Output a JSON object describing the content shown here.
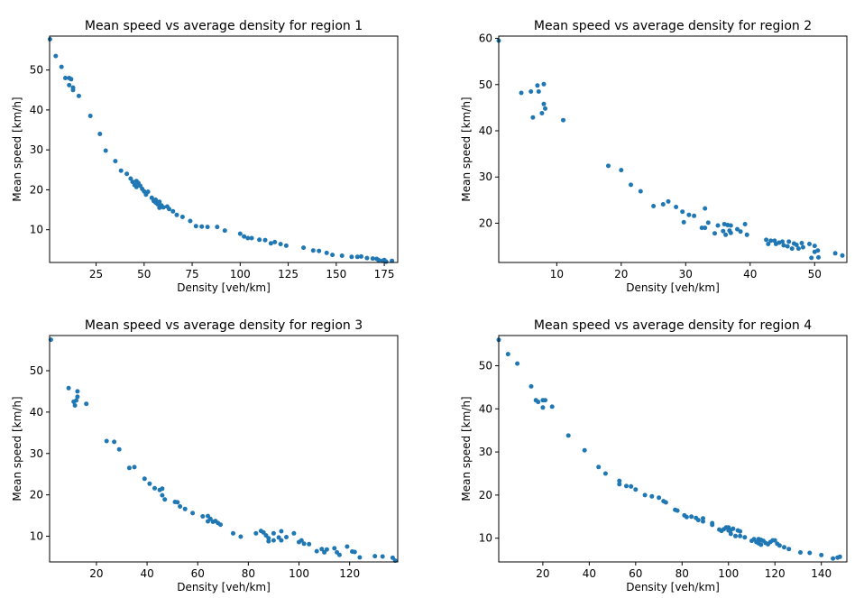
{
  "figure": {
    "point_color": "#1f77b4"
  },
  "chart_data": [
    {
      "type": "scatter",
      "title": "Mean speed vs average density for region 1",
      "xlabel": "Density [veh/km]",
      "ylabel": "Mean speed [km/h]",
      "xlim": [
        0.8,
        182
      ],
      "ylim": [
        1.8,
        58.5
      ],
      "xticks": [
        25,
        50,
        75,
        100,
        125,
        150,
        175
      ],
      "yticks": [
        10,
        20,
        30,
        40,
        50
      ],
      "grid": false,
      "points": [
        [
          1,
          57.7
        ],
        [
          4,
          53.5
        ],
        [
          7,
          50.8
        ],
        [
          9,
          48
        ],
        [
          11,
          48
        ],
        [
          11,
          46.2
        ],
        [
          12,
          47.7
        ],
        [
          13,
          45.6
        ],
        [
          13,
          45
        ],
        [
          16,
          43.5
        ],
        [
          22,
          38.5
        ],
        [
          27,
          34
        ],
        [
          30,
          29.8
        ],
        [
          35,
          27.2
        ],
        [
          38,
          24.8
        ],
        [
          41,
          24
        ],
        [
          43,
          22.8
        ],
        [
          44,
          22
        ],
        [
          45,
          21.2
        ],
        [
          46,
          22.2
        ],
        [
          46,
          20.7
        ],
        [
          47,
          21.7
        ],
        [
          48,
          21
        ],
        [
          49,
          20.2
        ],
        [
          50,
          19.6
        ],
        [
          51,
          18.8
        ],
        [
          52,
          19.5
        ],
        [
          54,
          18
        ],
        [
          55,
          17.2
        ],
        [
          56,
          17.5
        ],
        [
          56,
          16.8
        ],
        [
          57,
          16.4
        ],
        [
          58,
          15.5
        ],
        [
          58,
          17
        ],
        [
          59,
          16.1
        ],
        [
          60,
          15.6
        ],
        [
          62,
          15.8
        ],
        [
          63,
          15.2
        ],
        [
          65,
          14.6
        ],
        [
          67,
          13.7
        ],
        [
          70,
          13.2
        ],
        [
          74,
          12.2
        ],
        [
          77,
          10.9
        ],
        [
          80,
          10.8
        ],
        [
          83,
          10.7
        ],
        [
          88,
          10.7
        ],
        [
          92,
          9.8
        ],
        [
          100,
          9
        ],
        [
          102,
          8.3
        ],
        [
          104,
          7.9
        ],
        [
          106,
          7.9
        ],
        [
          110,
          7.5
        ],
        [
          113,
          7.4
        ],
        [
          116,
          6.6
        ],
        [
          118,
          6.9
        ],
        [
          121,
          6.4
        ],
        [
          124,
          6
        ],
        [
          133,
          5.5
        ],
        [
          138,
          4.8
        ],
        [
          141,
          4.7
        ],
        [
          145,
          4.2
        ],
        [
          148,
          3.7
        ],
        [
          153,
          3.5
        ],
        [
          158,
          3.2
        ],
        [
          161,
          3.2
        ],
        [
          163,
          3.3
        ],
        [
          166,
          2.9
        ],
        [
          169,
          2.8
        ],
        [
          171,
          2.7
        ],
        [
          172,
          2.4
        ],
        [
          174,
          2.2
        ],
        [
          175,
          2.4
        ],
        [
          176,
          2
        ],
        [
          179,
          2.2
        ]
      ]
    },
    {
      "type": "scatter",
      "title": "Mean speed vs average density for region 2",
      "xlabel": "Density [veh/km]",
      "ylabel": "Mean speed [km/h]",
      "xlim": [
        1,
        55
      ],
      "ylim": [
        11.5,
        60.5
      ],
      "xticks": [
        10,
        20,
        30,
        40,
        50
      ],
      "yticks": [
        20,
        30,
        40,
        50,
        60
      ],
      "grid": false,
      "points": [
        [
          1,
          59.5
        ],
        [
          4.5,
          48.2
        ],
        [
          6,
          48.5
        ],
        [
          6.3,
          42.9
        ],
        [
          7,
          49.8
        ],
        [
          7.2,
          48.5
        ],
        [
          7.7,
          43.8
        ],
        [
          8,
          50.1
        ],
        [
          8,
          45.8
        ],
        [
          8.2,
          44.8
        ],
        [
          11,
          42.3
        ],
        [
          18,
          32.4
        ],
        [
          20,
          31.5
        ],
        [
          21.5,
          28.3
        ],
        [
          23,
          26.9
        ],
        [
          25,
          23.7
        ],
        [
          26.5,
          24.1
        ],
        [
          27.3,
          24.7
        ],
        [
          28.5,
          23.5
        ],
        [
          29.5,
          22.5
        ],
        [
          29.7,
          20.2
        ],
        [
          30.5,
          21.8
        ],
        [
          31.3,
          21.6
        ],
        [
          32.5,
          19
        ],
        [
          33,
          19
        ],
        [
          33,
          23.2
        ],
        [
          33.5,
          20.1
        ],
        [
          34.5,
          17.8
        ],
        [
          35,
          19.5
        ],
        [
          35.8,
          18.3
        ],
        [
          36,
          19.8
        ],
        [
          36.2,
          17.5
        ],
        [
          36.5,
          19.6
        ],
        [
          36.8,
          18.4
        ],
        [
          37,
          19.5
        ],
        [
          37,
          17.9
        ],
        [
          38,
          18.7
        ],
        [
          38.5,
          18.2
        ],
        [
          39.2,
          19.8
        ],
        [
          39.5,
          17.5
        ],
        [
          42.5,
          16.4
        ],
        [
          42.8,
          15.5
        ],
        [
          43.2,
          16.2
        ],
        [
          43.8,
          16.2
        ],
        [
          44,
          15.5
        ],
        [
          44.5,
          15.8
        ],
        [
          45,
          16
        ],
        [
          45.2,
          15.2
        ],
        [
          45.8,
          15
        ],
        [
          46,
          16
        ],
        [
          46.5,
          14.5
        ],
        [
          46.8,
          15.6
        ],
        [
          47.2,
          15.3
        ],
        [
          47.5,
          14.5
        ],
        [
          48,
          15.7
        ],
        [
          48.2,
          14.8
        ],
        [
          49.2,
          15.5
        ],
        [
          49.5,
          12.5
        ],
        [
          50,
          13.8
        ],
        [
          50,
          15.1
        ],
        [
          50.5,
          14.1
        ],
        [
          50.6,
          12.6
        ],
        [
          53.2,
          13.5
        ],
        [
          54.3,
          13
        ]
      ]
    },
    {
      "type": "scatter",
      "title": "Mean speed vs average density for region 3",
      "xlabel": "Density [veh/km]",
      "ylabel": "Mean speed [km/h]",
      "xlim": [
        1.5,
        139
      ],
      "ylim": [
        3.8,
        58.5
      ],
      "xticks": [
        20,
        40,
        60,
        80,
        100,
        120
      ],
      "yticks": [
        10,
        20,
        30,
        40,
        50
      ],
      "grid": false,
      "points": [
        [
          2,
          57.5
        ],
        [
          9,
          45.8
        ],
        [
          11,
          42.5
        ],
        [
          11.5,
          41.6
        ],
        [
          12,
          42.8
        ],
        [
          12.5,
          43.7
        ],
        [
          12.5,
          45
        ],
        [
          16,
          42
        ],
        [
          24,
          33
        ],
        [
          27,
          32.8
        ],
        [
          29,
          31
        ],
        [
          33,
          26.5
        ],
        [
          35,
          26.7
        ],
        [
          39,
          23.9
        ],
        [
          41,
          22.7
        ],
        [
          43,
          21.6
        ],
        [
          45,
          21.2
        ],
        [
          46,
          21.5
        ],
        [
          46,
          19.9
        ],
        [
          47,
          18.9
        ],
        [
          51,
          18.3
        ],
        [
          52,
          18.2
        ],
        [
          53,
          17.2
        ],
        [
          55,
          16.6
        ],
        [
          58,
          15.6
        ],
        [
          62,
          14.8
        ],
        [
          64,
          14.9
        ],
        [
          64,
          13.6
        ],
        [
          65,
          14.2
        ],
        [
          66,
          13.5
        ],
        [
          67,
          13.7
        ],
        [
          68,
          13.2
        ],
        [
          69,
          12.8
        ],
        [
          74,
          10.7
        ],
        [
          77,
          9.9
        ],
        [
          83,
          10.7
        ],
        [
          85,
          11.3
        ],
        [
          86,
          10.9
        ],
        [
          87,
          10.2
        ],
        [
          88,
          9.5
        ],
        [
          88,
          8.8
        ],
        [
          90,
          10.7
        ],
        [
          90,
          9
        ],
        [
          92,
          9.7
        ],
        [
          93,
          11.2
        ],
        [
          93,
          9
        ],
        [
          95,
          9.8
        ],
        [
          98,
          10.7
        ],
        [
          100,
          8.6
        ],
        [
          101,
          9
        ],
        [
          102,
          8.2
        ],
        [
          104,
          8.1
        ],
        [
          107,
          6.4
        ],
        [
          109,
          6.9
        ],
        [
          110,
          6.1
        ],
        [
          111,
          6.8
        ],
        [
          114,
          7.1
        ],
        [
          115,
          6.1
        ],
        [
          116,
          5.5
        ],
        [
          119,
          7.5
        ],
        [
          121,
          6.3
        ],
        [
          122,
          6.2
        ],
        [
          124,
          4.9
        ],
        [
          130,
          5.2
        ],
        [
          133,
          5.1
        ],
        [
          137,
          4.8
        ],
        [
          138,
          4.1
        ]
      ]
    },
    {
      "type": "scatter",
      "title": "Mean speed vs average density for region 4",
      "xlabel": "Density [veh/km]",
      "ylabel": "Mean speed [km/h]",
      "xlim": [
        1,
        151
      ],
      "ylim": [
        4.5,
        57
      ],
      "xticks": [
        20,
        40,
        60,
        80,
        100,
        120,
        140
      ],
      "yticks": [
        10,
        20,
        30,
        40,
        50
      ],
      "grid": false,
      "points": [
        [
          1,
          56
        ],
        [
          5,
          52.7
        ],
        [
          9,
          50.5
        ],
        [
          15,
          45.2
        ],
        [
          17,
          42
        ],
        [
          18,
          41.6
        ],
        [
          20,
          42
        ],
        [
          20,
          40.3
        ],
        [
          21,
          42
        ],
        [
          24,
          40.5
        ],
        [
          31,
          33.8
        ],
        [
          38,
          30.4
        ],
        [
          44,
          26.5
        ],
        [
          47,
          25
        ],
        [
          53,
          23.3
        ],
        [
          53,
          22.5
        ],
        [
          56,
          22.1
        ],
        [
          58,
          22
        ],
        [
          60,
          21.3
        ],
        [
          64,
          20
        ],
        [
          67,
          19.7
        ],
        [
          70,
          19.4
        ],
        [
          72,
          18.6
        ],
        [
          73,
          18.3
        ],
        [
          77,
          16.6
        ],
        [
          78,
          16.4
        ],
        [
          81,
          15.3
        ],
        [
          82,
          14.9
        ],
        [
          84,
          15
        ],
        [
          86,
          14.7
        ],
        [
          87,
          14.2
        ],
        [
          89,
          14.6
        ],
        [
          89,
          13.9
        ],
        [
          93,
          13.1
        ],
        [
          93,
          13.5
        ],
        [
          96,
          12
        ],
        [
          97,
          11.7
        ],
        [
          98,
          12.1
        ],
        [
          99,
          12.5
        ],
        [
          100,
          11.8
        ],
        [
          100,
          12.5
        ],
        [
          101,
          11.9
        ],
        [
          101,
          11
        ],
        [
          102,
          12.2
        ],
        [
          103,
          10.5
        ],
        [
          104,
          11.8
        ],
        [
          105,
          11.6
        ],
        [
          105,
          10.5
        ],
        [
          107,
          10.2
        ],
        [
          110,
          9.4
        ],
        [
          111,
          9.8
        ],
        [
          112,
          9.1
        ],
        [
          113,
          9.8
        ],
        [
          113,
          8.8
        ],
        [
          114,
          9.6
        ],
        [
          114,
          8.5
        ],
        [
          115,
          9.4
        ],
        [
          116,
          8.9
        ],
        [
          117,
          8.6
        ],
        [
          118,
          9.1
        ],
        [
          119,
          9.5
        ],
        [
          120,
          9.5
        ],
        [
          121,
          8.7
        ],
        [
          122,
          8.3
        ],
        [
          124,
          7.9
        ],
        [
          126,
          7.5
        ],
        [
          131,
          6.7
        ],
        [
          135,
          6.6
        ],
        [
          140,
          6.1
        ],
        [
          145,
          5.3
        ],
        [
          147,
          5.5
        ],
        [
          148,
          5.7
        ]
      ]
    }
  ]
}
